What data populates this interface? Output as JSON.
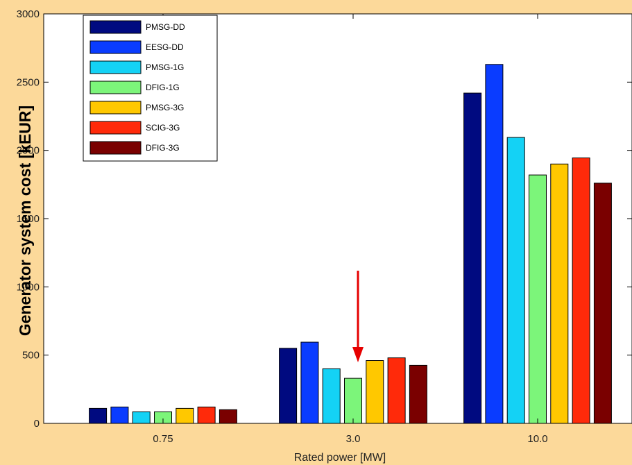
{
  "chart_data": {
    "type": "bar",
    "title": "",
    "xlabel": "Rated power [MW]",
    "ylabel": "Generator system cost [kEUR]",
    "categories": [
      "0.75",
      "3.0",
      "10.0"
    ],
    "ylim": [
      0,
      3000
    ],
    "yticks": [
      "0",
      "500",
      "1000",
      "1500",
      "2000",
      "2500",
      "3000"
    ],
    "series": [
      {
        "name": "PMSG-DD",
        "color": "#000a80",
        "values": [
          110,
          550,
          2420
        ]
      },
      {
        "name": "EESG-DD",
        "color": "#0a3cff",
        "values": [
          120,
          595,
          2630
        ]
      },
      {
        "name": "PMSG-1G",
        "color": "#14d2f5",
        "values": [
          85,
          400,
          2095
        ]
      },
      {
        "name": "DFIG-1G",
        "color": "#7cf57a",
        "values": [
          85,
          330,
          1820
        ]
      },
      {
        "name": "PMSG-3G",
        "color": "#ffc800",
        "values": [
          110,
          460,
          1900
        ]
      },
      {
        "name": "SCIG-3G",
        "color": "#ff2a0a",
        "values": [
          120,
          480,
          1945
        ]
      },
      {
        "name": "DFIG-3G",
        "color": "#7a0000",
        "values": [
          100,
          425,
          1760
        ]
      }
    ],
    "legend_position": "top-left",
    "grid": false,
    "annotation": {
      "type": "arrow",
      "color": "#e60000",
      "target": "3.0 / DFIG-1G"
    }
  }
}
